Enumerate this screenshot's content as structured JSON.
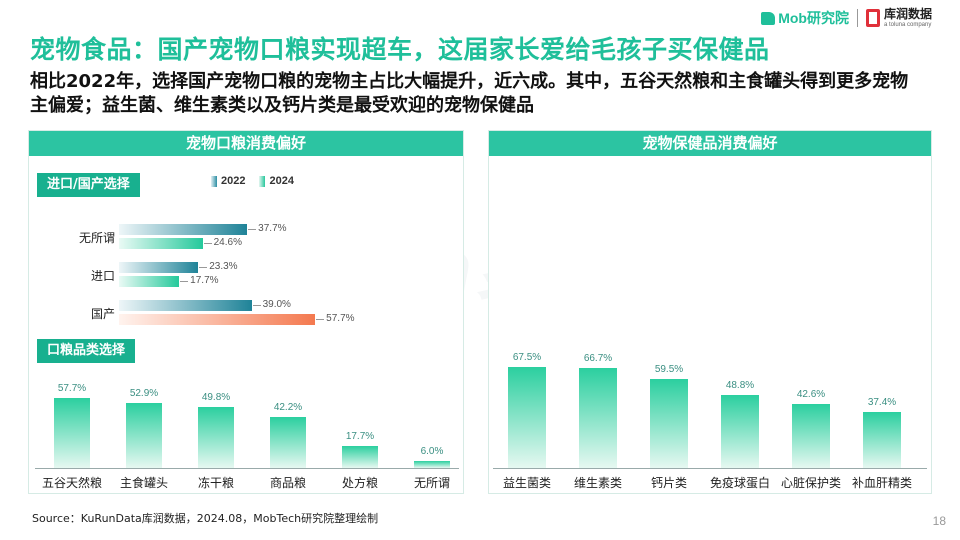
{
  "header": {
    "mob_logo_text": "Mob研究院",
    "kurun_logo_cn": "库润数据",
    "kurun_logo_en": "a toluna company",
    "title": "宠物食品：国产宠物口粮实现超车，这届家长爱给毛孩子买保健品",
    "subtitle": "相比2022年，选择国产宠物口粮的宠物主占比大幅提升，近六成。其中，五谷天然粮和主食罐头得到更多宠物主偏爱；益生菌、维生素类以及钙片类是最受欢迎的宠物保健品"
  },
  "watermark": "MobTech袤博",
  "left_panel": {
    "heading": "宠物口粮消费偏好",
    "section_a_label": "进口/国产选择",
    "section_b_label": "口粮品类选择"
  },
  "right_panel": {
    "heading": "宠物保健品消费偏好"
  },
  "colors": {
    "brand": "#1fbf9a",
    "header_bar": "#2cc4a2",
    "series_2022": "#1f8398",
    "series_2024": "#25c99b",
    "highlight": "#f4794f"
  },
  "chart_data": [
    {
      "type": "bar",
      "orientation": "horizontal",
      "categories": [
        "无所谓",
        "进口",
        "国产"
      ],
      "series": [
        {
          "name": "2022",
          "values": [
            37.7,
            23.3,
            39.0
          ]
        },
        {
          "name": "2024",
          "values": [
            24.6,
            17.7,
            57.7
          ]
        }
      ],
      "value_labels": {
        "2022": [
          "37.7%",
          "23.3%",
          "39.0%"
        ],
        "2024": [
          "24.6%",
          "17.7%",
          "57.7%"
        ]
      },
      "unit": "%",
      "legend": "top",
      "highlight": {
        "series": "2024",
        "category": "国产"
      }
    },
    {
      "type": "bar",
      "categories": [
        "五谷天然粮",
        "主食罐头",
        "冻干粮",
        "商品粮",
        "处方粮",
        "无所谓"
      ],
      "values": [
        57.7,
        52.9,
        49.8,
        42.2,
        17.7,
        6.0
      ],
      "value_labels": [
        "57.7%",
        "52.9%",
        "49.8%",
        "42.2%",
        "17.7%",
        "6.0%"
      ],
      "unit": "%"
    },
    {
      "type": "bar",
      "categories": [
        "益生菌类",
        "维生素类",
        "钙片类",
        "免疫球蛋白",
        "心脏保护类",
        "补血肝精类"
      ],
      "values": [
        67.5,
        66.7,
        59.5,
        48.8,
        42.6,
        37.4
      ],
      "value_labels": [
        "67.5%",
        "66.7%",
        "59.5%",
        "48.8%",
        "42.6%",
        "37.4%"
      ],
      "unit": "%"
    }
  ],
  "footer": {
    "source": "Source：KuRunData库润数据，2024.08，MobTech研究院整理绘制",
    "page_number": "18"
  }
}
